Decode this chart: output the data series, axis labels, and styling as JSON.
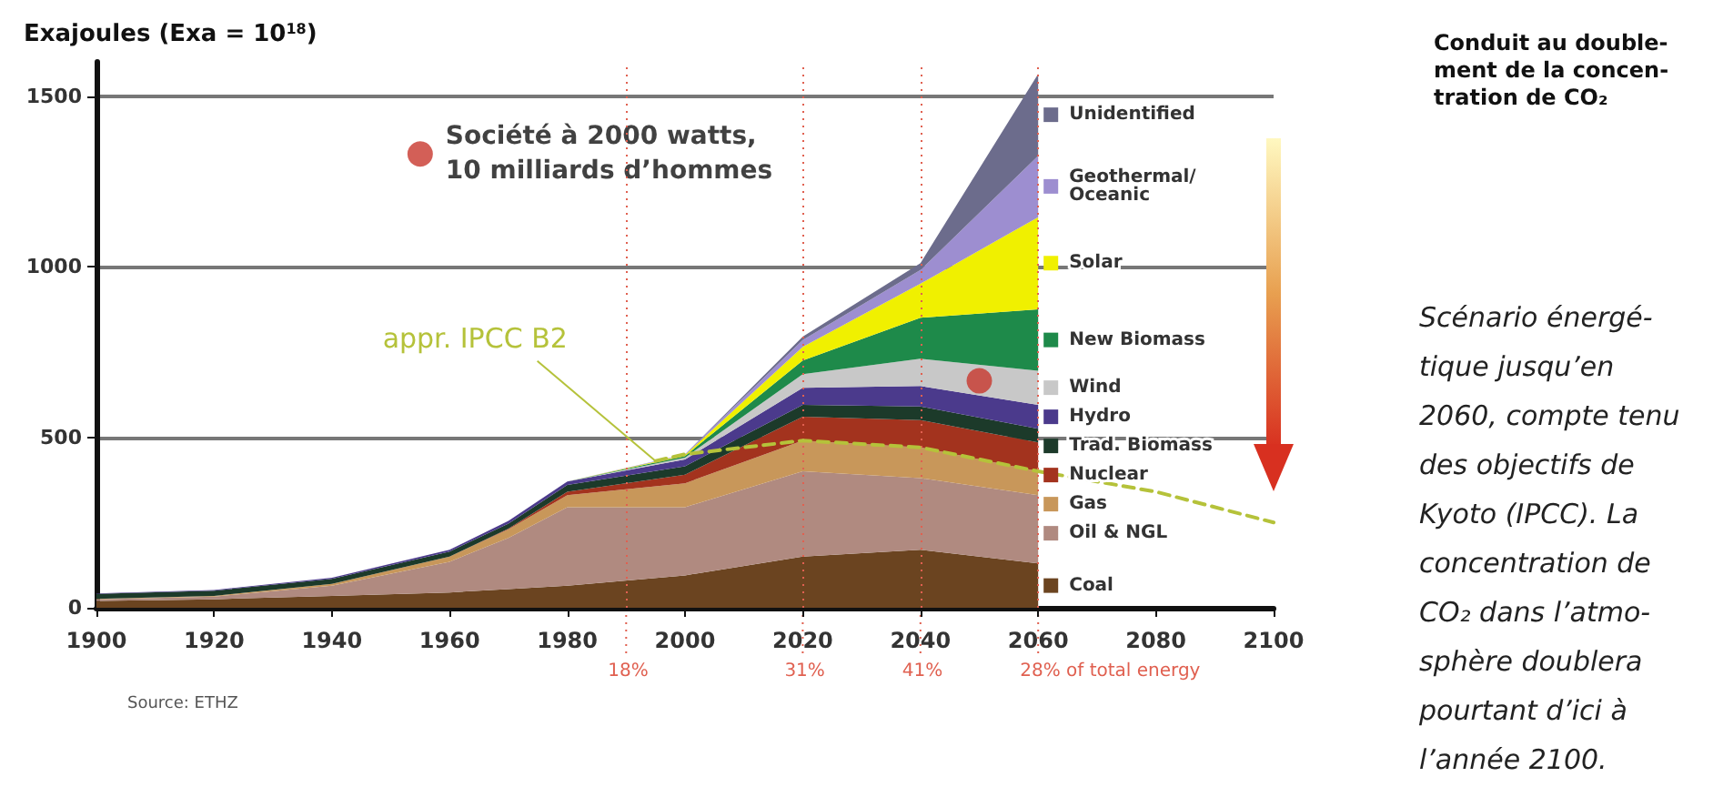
{
  "chart_data": {
    "type": "area",
    "stacked": true,
    "ylabel": "Exajoules (Exa = 10$^{18}$)",
    "x": [
      1900,
      1920,
      1940,
      1960,
      1970,
      1980,
      2000,
      2020,
      2040,
      2060
    ],
    "xlim": [
      1900,
      2100
    ],
    "xticks": [
      1900,
      1920,
      1940,
      1960,
      1980,
      2000,
      2020,
      2040,
      2060,
      2080,
      2100
    ],
    "ylim": [
      0,
      1600
    ],
    "yticks": [
      0,
      500,
      {
        "value": 1000,
        "label": "1000"
      },
      {
        "value": 1500,
        "label": "1500"
      }
    ],
    "grid": "y",
    "legend": "right",
    "series": [
      {
        "name": "Coal",
        "color": "#6b4420",
        "values": [
          20,
          25,
          35,
          45,
          55,
          65,
          95,
          150,
          170,
          130
        ]
      },
      {
        "name": "Oil & NGL",
        "color": "#b08a80",
        "values": [
          5,
          8,
          30,
          90,
          150,
          230,
          200,
          250,
          210,
          200
        ]
      },
      {
        "name": "Gas",
        "color": "#c8975a",
        "values": [
          1,
          2,
          5,
          15,
          25,
          35,
          70,
          90,
          90,
          70
        ]
      },
      {
        "name": "Nuclear",
        "color": "#a3331e",
        "values": [
          0,
          0,
          0,
          0,
          2,
          10,
          25,
          70,
          80,
          85
        ]
      },
      {
        "name": "Trad. Biomass",
        "color": "#1c3a2a",
        "values": [
          15,
          15,
          15,
          15,
          15,
          20,
          25,
          35,
          40,
          40
        ]
      },
      {
        "name": "Hydro",
        "color": "#4b3a8c",
        "values": [
          1,
          2,
          3,
          5,
          8,
          10,
          20,
          50,
          60,
          70
        ]
      },
      {
        "name": "Wind",
        "color": "#c8c8c8",
        "values": [
          0,
          0,
          0,
          0,
          0,
          0,
          5,
          40,
          80,
          100
        ]
      },
      {
        "name": "New Biomass",
        "color": "#1e8a4a",
        "values": [
          0,
          0,
          0,
          0,
          0,
          0,
          5,
          40,
          120,
          180
        ]
      },
      {
        "name": "Solar",
        "color": "#f0f000",
        "values": [
          0,
          0,
          0,
          0,
          0,
          0,
          3,
          40,
          100,
          270
        ]
      },
      {
        "name": "Geothermal/ Oceanic",
        "color": "#9d8ed0",
        "values": [
          0,
          0,
          0,
          0,
          0,
          0,
          2,
          20,
          40,
          180
        ]
      },
      {
        "name": "Unidentified",
        "color": "#6c6c8c",
        "values": [
          0,
          0,
          0,
          0,
          0,
          0,
          0,
          10,
          20,
          240
        ]
      },
      {
        "name": "appr. IPCC B2",
        "type": "line",
        "color": "#b5c23a",
        "line_style": "dashed",
        "x": [
          1995,
          2000,
          2020,
          2040,
          2060,
          2080,
          2100
        ],
        "values": [
          430,
          450,
          490,
          470,
          400,
          340,
          250
        ]
      },
      {
        "type": "scatter",
        "color": "#c8372d",
        "marker": "circle",
        "x": [
          1955,
          2050
        ],
        "values": [
          1330,
          665
        ]
      }
    ],
    "ref_lines": [
      {
        "axis": "x",
        "value": 1990,
        "color": "#e06050",
        "line_style": "dotted"
      },
      {
        "axis": "x",
        "value": 2020,
        "color": "#e06050",
        "line_style": "dotted"
      },
      {
        "axis": "x",
        "value": 2040,
        "color": "#e06050",
        "line_style": "dotted"
      },
      {
        "axis": "x",
        "value": 2060,
        "color": "#e06050",
        "line_style": "dotted"
      }
    ],
    "annotations": [
      {
        "text": "Société à 2000 watts,\n10 milliards d’hommes",
        "x": 1955,
        "y": 1330
      },
      {
        "text": "18%",
        "x": 1990,
        "y": 0
      },
      {
        "text": "31%",
        "x": 2020,
        "y": 0
      },
      {
        "text": "41%",
        "x": 2040,
        "y": 0
      },
      {
        "text": "28% of total energy",
        "x": 2060,
        "y": 0
      },
      "Conduit au double-\nment de la concen-\ntration de CO₂",
      "Scénario énergé-\ntique jusqu’en\n2060, compte tenu\ndes objectifs de\nKyoto (IPCC). La\nconcentration de\nCO₂ dans l’atmo-\nsphère doublera\npourtant d’ici à\nl’année 2100.",
      "Source: ETHZ"
    ]
  }
}
